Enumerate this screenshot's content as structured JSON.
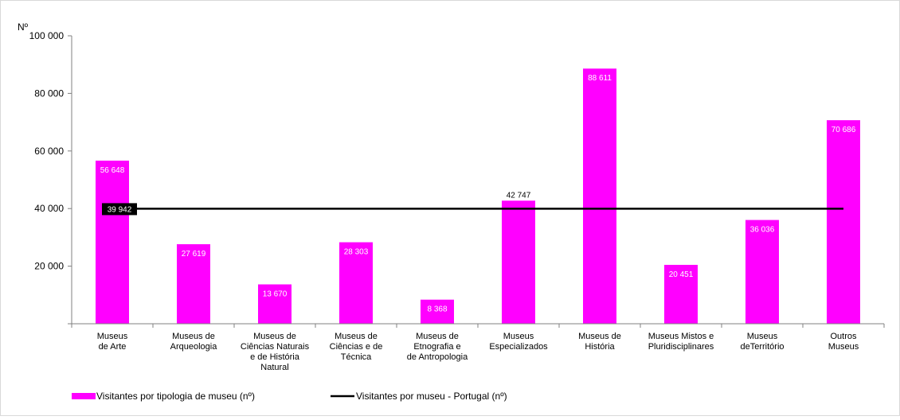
{
  "chart_data": {
    "type": "bar",
    "ylabel": "Nº",
    "ylim": [
      0,
      100000
    ],
    "yticks": [
      {
        "value": 20000,
        "label": "20 000"
      },
      {
        "value": 40000,
        "label": "40 000"
      },
      {
        "value": 60000,
        "label": "60 000"
      },
      {
        "value": 80000,
        "label": "80 000"
      },
      {
        "value": 100000,
        "label": "100 000"
      }
    ],
    "categories": [
      [
        "Museus",
        "de Arte"
      ],
      [
        "Museus de",
        "Arqueologia"
      ],
      [
        "Museus de",
        "Ciências Naturais",
        "e de História",
        "Natural"
      ],
      [
        "Museus de",
        "Ciências e de",
        "Técnica"
      ],
      [
        "Museus de",
        "Etnografia e",
        "de Antropologia"
      ],
      [
        "Museus",
        "Especializados"
      ],
      [
        "Museus de",
        "História"
      ],
      [
        "Museus Mistos e",
        "Pluridisciplinares"
      ],
      [
        "Museus",
        "deTerritório"
      ],
      [
        "Outros",
        "Museus"
      ]
    ],
    "series": [
      {
        "name": "Visitantes por tipologia de museu (nº)",
        "type": "bar",
        "color": "#ff00ff",
        "values": [
          56648,
          27619,
          13670,
          28303,
          8368,
          42747,
          88611,
          20451,
          36036,
          70686
        ],
        "labels": [
          "56 648",
          "27 619",
          "13 670",
          "28 303",
          "8 368",
          "42 747",
          "88 611",
          "20 451",
          "36 036",
          "70 686"
        ]
      },
      {
        "name": "Visitantes por museu - Portugal (nº)",
        "type": "line",
        "color": "#000000",
        "value": 39942,
        "label": "39 942"
      }
    ],
    "legend": "bottom",
    "grid": false
  }
}
